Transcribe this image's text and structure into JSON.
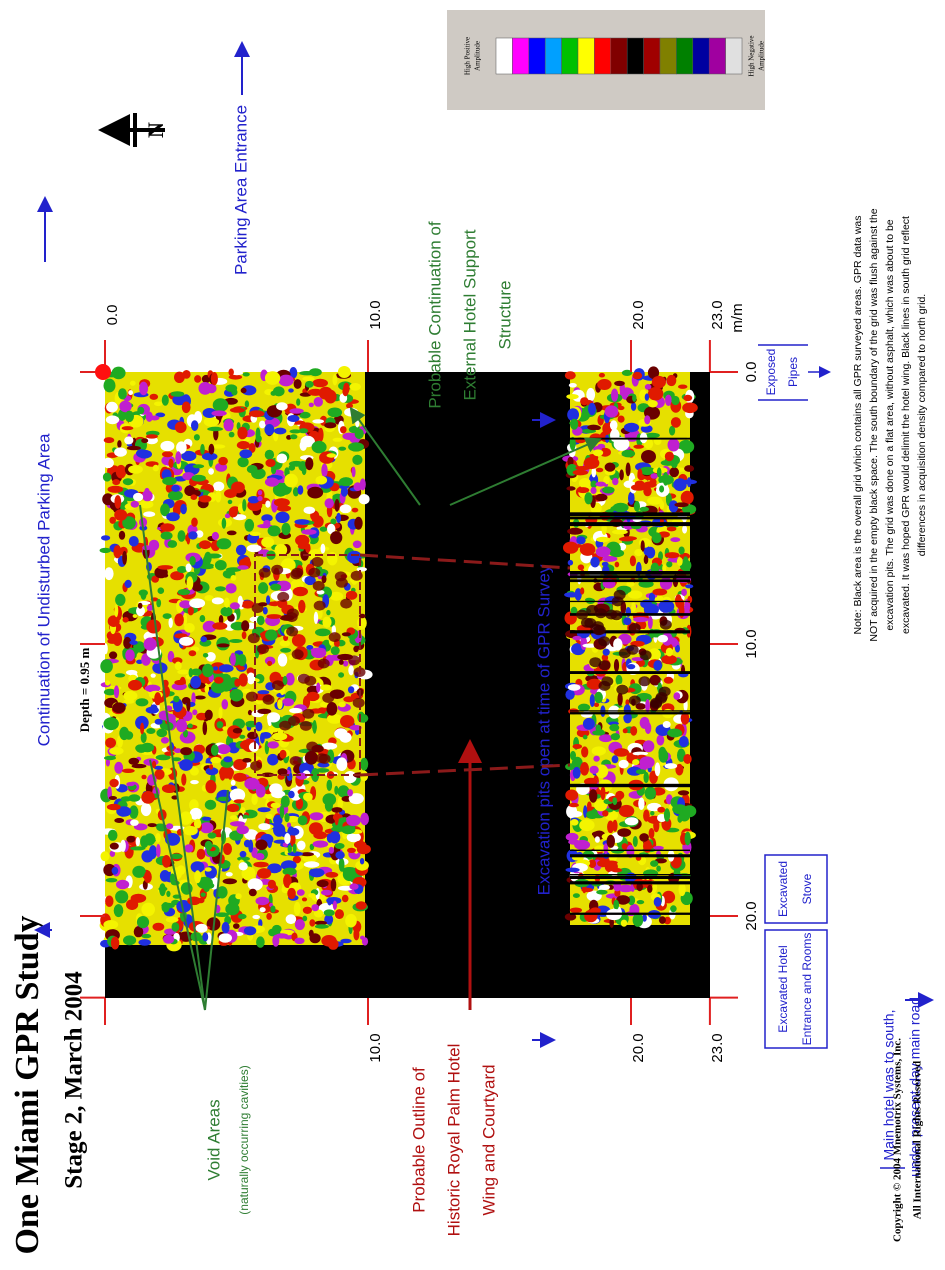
{
  "header": {
    "title": "One Miami GPR Study",
    "subtitle": "Stage 2, March 2004"
  },
  "depth_label": "Depth = 0.95 m",
  "north_label": "N",
  "axes": {
    "across": {
      "ticks": [
        {
          "value": 0,
          "label": "0.0"
        },
        {
          "value": 10,
          "label": "10.0"
        },
        {
          "value": 20,
          "label": "20.0"
        },
        {
          "value": 23,
          "label": "23.0"
        }
      ],
      "unit": "m/m"
    },
    "along": {
      "ticks": [
        {
          "value": 0,
          "label": "0.0"
        },
        {
          "value": 10,
          "label": "10.0"
        },
        {
          "value": 20,
          "label": "20.0"
        },
        {
          "value": 23,
          "label": "23.0"
        }
      ]
    }
  },
  "legend": {
    "high_label": [
      "High Positive",
      "Amplitude"
    ],
    "low_label": [
      "High Negative",
      "Amplitude"
    ],
    "colors": [
      "#ffffff",
      "#ff00ff",
      "#0000ff",
      "#00a0ff",
      "#00c000",
      "#ffff00",
      "#ff0000",
      "#800000",
      "#000000",
      "#a00000",
      "#808000",
      "#008000",
      "#0000a0",
      "#a000a0",
      "#e0e0e0"
    ]
  },
  "annotations": {
    "undisturbed": "Continuation of Undisturbed Parking Area",
    "parking_entrance": "Parking Area Entrance",
    "excavation_pits": "Excavation pits open at time of GPR Survey",
    "support_structure": [
      "Probable Continuation of",
      "External Hotel Support",
      "Structure"
    ],
    "void_areas": "Void Areas",
    "void_note": "(naturally occurring cavities)",
    "hotel_outline": [
      "Probable Outline of",
      "Historic Royal Palm Hotel",
      "Wing and Courtyard"
    ],
    "excavated_entrance": [
      "Excavated Hotel",
      "Entrance and Rooms"
    ],
    "excavated_stove": [
      "Excavated",
      "Stove"
    ],
    "exposed_pipes": [
      "Exposed",
      "Pipes"
    ],
    "main_hotel": [
      "Main hotel was to south,",
      "under present-day main road."
    ]
  },
  "note": [
    "Note: Black area is the overall grid which contains all GPR surveyed areas.  GPR data was",
    "NOT acquired in the empty black space.  The south boundary of the grid was flush against the",
    "excavation pits.  The grid was done on a flat area, without asphalt, which was about to be",
    "excavated.  It was hoped GPR would delimit the hotel wing.  Black lines in south grid reflect",
    "differences in acquisition density compared to north grid."
  ],
  "copyright": [
    "Copyright © 2004 Mnemotrix Systems, Inc.",
    "All International Rights Reserved"
  ]
}
